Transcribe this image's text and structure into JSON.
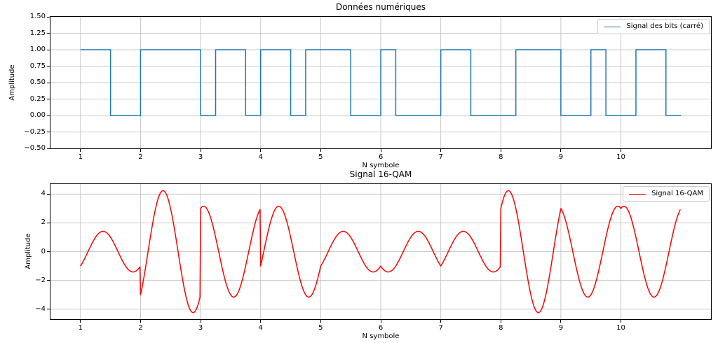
{
  "figure": {
    "background": "#ffffff",
    "spine_color": "#000000",
    "text_color": "#000000"
  },
  "chart_data": [
    {
      "type": "line",
      "title": "Données numériques",
      "xlabel": "N symbole",
      "ylabel": "Amplitude",
      "legend": {
        "label": "Signal des bits (carré)",
        "position": "upper right"
      },
      "line_color": "#1f77b4",
      "line_width": 1.5,
      "grid": true,
      "grid_color": "#c8c8c8",
      "xlim": [
        0.5,
        11.5
      ],
      "ylim": [
        -0.5,
        1.5
      ],
      "xticks": [
        1,
        2,
        3,
        4,
        5,
        6,
        7,
        8,
        9,
        10
      ],
      "xtick_labels": [
        "1",
        "2",
        "3",
        "4",
        "5",
        "6",
        "7",
        "8",
        "9",
        "10"
      ],
      "yticks": [
        1.5,
        1.25,
        1.0,
        0.75,
        0.5,
        0.25,
        0.0,
        -0.25,
        -0.5
      ],
      "ytick_labels": [
        "1.50",
        "1.25",
        "1.00",
        "0.75",
        "0.50",
        "0.25",
        "0.00",
        "−0.25",
        "−0.50"
      ],
      "signal": {
        "kind": "square_bits",
        "x_start": 1,
        "bit_duration": 0.25,
        "bits": [
          1,
          1,
          0,
          0,
          1,
          1,
          1,
          1,
          0,
          1,
          1,
          0,
          1,
          1,
          0,
          1,
          1,
          1,
          0,
          0,
          1,
          0,
          0,
          0,
          1,
          1,
          0,
          0,
          0,
          1,
          1,
          1,
          0,
          0,
          1,
          0,
          0,
          1,
          1,
          0
        ]
      }
    },
    {
      "type": "line",
      "title": "Signal 16-QAM",
      "xlabel": "N symbole",
      "ylabel": "Amplitude",
      "legend": {
        "label": "Signal 16-QAM",
        "position": "upper right"
      },
      "line_color": "#ff0000",
      "line_width": 1.5,
      "grid": true,
      "grid_color": "#c8c8c8",
      "xlim": [
        0.5,
        11.5
      ],
      "ylim": [
        -4.7,
        4.7
      ],
      "xticks": [
        1,
        2,
        3,
        4,
        5,
        6,
        7,
        8,
        9,
        10
      ],
      "xtick_labels": [
        "1",
        "2",
        "3",
        "4",
        "5",
        "6",
        "7",
        "8",
        "9",
        "10"
      ],
      "yticks": [
        4,
        2,
        0,
        -2,
        -4
      ],
      "ytick_labels": [
        "4",
        "2",
        "0",
        "−2",
        "−4"
      ],
      "signal": {
        "kind": "qam16",
        "x_start": 1,
        "x_end": 10.99,
        "sample_step": 0.01,
        "cycles_per_symbol": 1,
        "symbols_IQ": [
          [
            -1,
            -1
          ],
          [
            -3,
            -3
          ],
          [
            3,
            -1
          ],
          [
            -1,
            -3
          ],
          [
            -1,
            -1
          ],
          [
            -1,
            1
          ],
          [
            -1,
            -1
          ],
          [
            3,
            -3
          ],
          [
            3,
            1
          ],
          [
            3,
            -1
          ]
        ]
      }
    }
  ]
}
